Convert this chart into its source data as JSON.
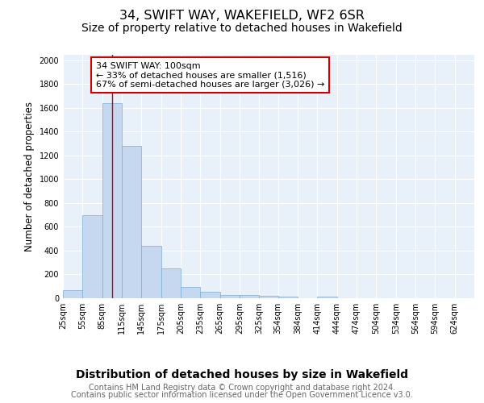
{
  "title": "34, SWIFT WAY, WAKEFIELD, WF2 6SR",
  "subtitle": "Size of property relative to detached houses in Wakefield",
  "xlabel": "Distribution of detached houses by size in Wakefield",
  "ylabel": "Number of detached properties",
  "bar_color": "#c5d8f0",
  "bar_edge_color": "#7badd4",
  "background_color": "#e8f0fa",
  "grid_color": "#ffffff",
  "bins": [
    25,
    55,
    85,
    115,
    145,
    175,
    205,
    235,
    265,
    295,
    325,
    354,
    384,
    414,
    444,
    474,
    504,
    534,
    564,
    594,
    624
  ],
  "values": [
    70,
    700,
    1640,
    1280,
    440,
    250,
    95,
    55,
    30,
    28,
    20,
    15,
    0,
    15,
    0,
    0,
    0,
    0,
    0,
    0
  ],
  "property_size": 100,
  "annotation_line1": "34 SWIFT WAY: 100sqm",
  "annotation_line2": "← 33% of detached houses are smaller (1,516)",
  "annotation_line3": "67% of semi-detached houses are larger (3,026) →",
  "annotation_box_color": "#ffffff",
  "annotation_border_color": "#cc0000",
  "red_line_color": "#cc0000",
  "ylim": [
    0,
    2050
  ],
  "yticks": [
    0,
    200,
    400,
    600,
    800,
    1000,
    1200,
    1400,
    1600,
    1800,
    2000
  ],
  "footnote1": "Contains HM Land Registry data © Crown copyright and database right 2024.",
  "footnote2": "Contains public sector information licensed under the Open Government Licence v3.0.",
  "title_fontsize": 11.5,
  "subtitle_fontsize": 10,
  "xlabel_fontsize": 10,
  "ylabel_fontsize": 8.5,
  "tick_fontsize": 7,
  "annotation_fontsize": 8,
  "footnote_fontsize": 7
}
